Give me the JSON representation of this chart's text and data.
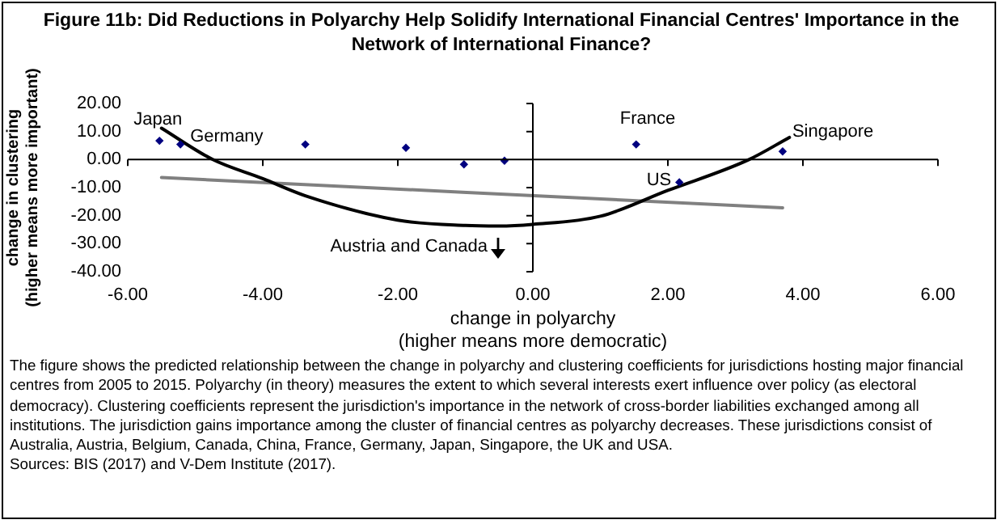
{
  "chart_data": {
    "type": "scatter",
    "title": "Figure 11b: Did Reductions in Polyarchy Help Solidify International Financial Centres' Importance in the Network of International Finance?",
    "xlabel": "change in polyarchy\n(higher means more democratic)",
    "ylabel": "change in clustering\n(higher means more important)",
    "series": [
      {
        "color": "#000080",
        "marker": "diamond",
        "x": [
          -5.53,
          -5.22,
          -3.37,
          -1.88,
          -1.02,
          -0.42,
          1.53,
          2.17,
          3.7
        ],
        "values": [
          6.7,
          5.4,
          5.4,
          4.2,
          -1.7,
          -0.4,
          5.4,
          -8.1,
          2.9
        ]
      },
      {
        "type": "line",
        "color": "#000000",
        "x": [
          -5.5,
          -4.74,
          -4,
          -3.37,
          -2,
          -1,
          -0.5,
          0,
          1,
          2,
          3.2,
          3.8
        ],
        "values": [
          11.2,
          0,
          -6.8,
          -12.9,
          -21.6,
          -23.5,
          -23.7,
          -23.1,
          -20.2,
          -11,
          0,
          7.9
        ]
      },
      {
        "type": "line",
        "color": "#808080",
        "x": [
          -5.5,
          3.7
        ],
        "values": [
          -6.4,
          -17.2
        ]
      }
    ],
    "xlim": [
      -6,
      6
    ],
    "xticks": [
      {
        "value": -6,
        "label": "-6.00"
      },
      {
        "value": -4,
        "label": "-4.00"
      },
      {
        "value": -2,
        "label": "-2.00"
      },
      {
        "value": 0,
        "label": "0.00"
      },
      {
        "value": 2,
        "label": "2.00"
      },
      {
        "value": 4,
        "label": "4.00"
      },
      {
        "value": 6,
        "label": "6.00"
      }
    ],
    "ylim": [
      -40,
      20
    ],
    "yticks": [
      {
        "value": -40,
        "label": "-40.00"
      },
      {
        "value": -30,
        "label": "-30.00"
      },
      {
        "value": -20,
        "label": "-20.00"
      },
      {
        "value": -10,
        "label": "-10.00"
      },
      {
        "value": 0,
        "label": "0.00"
      },
      {
        "value": 10,
        "label": "10.00"
      },
      {
        "value": 20,
        "label": "20.00"
      }
    ],
    "legend": false,
    "annotations": [
      {
        "text": "Japan",
        "x": -5.53,
        "y": 6.7
      },
      {
        "text": "Germany",
        "x": -5.22,
        "y": 5.4
      },
      {
        "text": "France",
        "x": 1.53,
        "y": 5.4
      },
      {
        "text": "Singapore",
        "x": 3.7,
        "y": 2.9
      },
      {
        "text": "US",
        "x": 2.17,
        "y": -8.1
      },
      "Austria and Canada",
      "The figure shows the predicted relationship between the change in polyarchy and clustering coefficients for jurisdictions hosting major financial centres from 2005 to 2015. Polyarchy (in theory) measures the extent to which several interests exert influence over policy (as electoral democracy). Clustering coefficients represent the jurisdiction's importance in the network of cross-border liabilities exchanged among all institutions. The jurisdiction gains importance among the cluster of financial centres as polyarchy decreases. These jurisdictions consist of Australia, Austria, Belgium, Canada, China, France, Germany, Japan, Singapore, the UK and USA.",
      "Sources: BIS (2017) and V-Dem Institute (2017)."
    ]
  }
}
